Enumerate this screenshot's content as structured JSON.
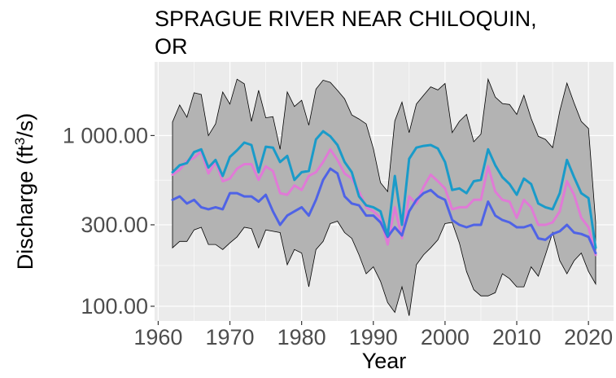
{
  "chart_data": {
    "type": "line",
    "title_line1": "SPRAGUE RIVER NEAR CHILOQUIN,",
    "title_line2": "OR",
    "xlabel": "Year",
    "ylabel": "Discharge (ft³/s)",
    "ylabel_parts": {
      "before": "Discharge (ft",
      "sup": "3",
      "after": "/s)"
    },
    "y_scale": "log",
    "xlim": [
      1959.5,
      2023.5
    ],
    "ylim": [
      82,
      2700
    ],
    "x_ticks": [
      1960,
      1970,
      1980,
      1990,
      2000,
      2010,
      2020
    ],
    "x_tick_labels": [
      "1960",
      "1970",
      "1980",
      "1990",
      "2000",
      "2010",
      "2020"
    ],
    "y_ticks": [
      100,
      300,
      1000
    ],
    "y_tick_labels": [
      "100.00",
      "300.00",
      "1 000.00"
    ],
    "grid": true,
    "colors": {
      "panel_bg": "#ebebeb",
      "grid": "#ffffff",
      "ribbon": "#b3b3b3",
      "ribbon_outline": "#000000",
      "mean_line": "#1a9bc9",
      "median_line": "#e07ad6",
      "low_line": "#4f63e6"
    },
    "x": [
      1962,
      1963,
      1964,
      1965,
      1966,
      1967,
      1968,
      1969,
      1970,
      1971,
      1972,
      1973,
      1974,
      1975,
      1976,
      1977,
      1978,
      1979,
      1980,
      1981,
      1982,
      1983,
      1984,
      1985,
      1986,
      1987,
      1988,
      1989,
      1990,
      1991,
      1992,
      1993,
      1994,
      1995,
      1996,
      1997,
      1998,
      1999,
      2000,
      2001,
      2002,
      2003,
      2004,
      2005,
      2006,
      2007,
      2008,
      2009,
      2010,
      2011,
      2012,
      2013,
      2014,
      2015,
      2016,
      2017,
      2018,
      2019,
      2020,
      2021
    ],
    "ribbon_upper": [
      1200,
      1510,
      1280,
      1780,
      1740,
      1000,
      1170,
      1800,
      1530,
      2140,
      2010,
      1210,
      1840,
      1270,
      1290,
      830,
      1800,
      1480,
      1610,
      1150,
      1870,
      2110,
      2050,
      1840,
      1640,
      1320,
      1250,
      1170,
      840,
      530,
      470,
      1220,
      1570,
      1040,
      1530,
      1720,
      1930,
      1850,
      2020,
      1040,
      1210,
      1330,
      920,
      1020,
      2140,
      1680,
      1540,
      1520,
      1330,
      1720,
      1260,
      990,
      950,
      850,
      1390,
      2030,
      1550,
      1210,
      1100,
      310
    ],
    "ribbon_lower": [
      220,
      240,
      240,
      280,
      290,
      230,
      230,
      215,
      235,
      255,
      290,
      285,
      220,
      280,
      275,
      270,
      175,
      215,
      205,
      130,
      215,
      240,
      305,
      315,
      270,
      250,
      200,
      155,
      170,
      140,
      105,
      92,
      130,
      88,
      175,
      200,
      220,
      245,
      305,
      310,
      235,
      160,
      125,
      115,
      115,
      120,
      155,
      145,
      130,
      130,
      170,
      150,
      200,
      270,
      185,
      155,
      185,
      205,
      160,
      135
    ],
    "series": [
      {
        "values": [
          590,
          630,
          710,
          740,
          810,
          600,
          700,
          540,
          560,
          640,
          680,
          680,
          550,
          660,
          620,
          460,
          450,
          510,
          480,
          580,
          610,
          700,
          830,
          720,
          600,
          560,
          470,
          380,
          360,
          330,
          230,
          380,
          250,
          440,
          400,
          500,
          590,
          540,
          490,
          370,
          380,
          380,
          420,
          420,
          660,
          470,
          420,
          410,
          330,
          420,
          380,
          300,
          300,
          310,
          360,
          540,
          450,
          330,
          290,
          200
        ]
      },
      {
        "values": [
          420,
          440,
          400,
          420,
          380,
          370,
          380,
          370,
          460,
          460,
          440,
          440,
          410,
          450,
          360,
          300,
          340,
          360,
          380,
          340,
          420,
          550,
          640,
          600,
          440,
          400,
          390,
          340,
          340,
          310,
          255,
          290,
          260,
          360,
          420,
          460,
          480,
          440,
          420,
          320,
          300,
          290,
          300,
          300,
          410,
          340,
          320,
          310,
          290,
          290,
          300,
          250,
          245,
          265,
          275,
          300,
          270,
          265,
          255,
          205
        ]
      },
      {
        "values": [
          610,
          670,
          690,
          800,
          830,
          650,
          720,
          580,
          750,
          820,
          910,
          880,
          610,
          860,
          850,
          700,
          760,
          550,
          610,
          620,
          950,
          1060,
          990,
          880,
          700,
          610,
          440,
          390,
          380,
          360,
          260,
          580,
          300,
          730,
          850,
          870,
          880,
          840,
          700,
          480,
          490,
          460,
          540,
          550,
          830,
          670,
          570,
          520,
          450,
          560,
          520,
          400,
          380,
          370,
          460,
          720,
          570,
          460,
          430,
          220
        ]
      }
    ]
  }
}
